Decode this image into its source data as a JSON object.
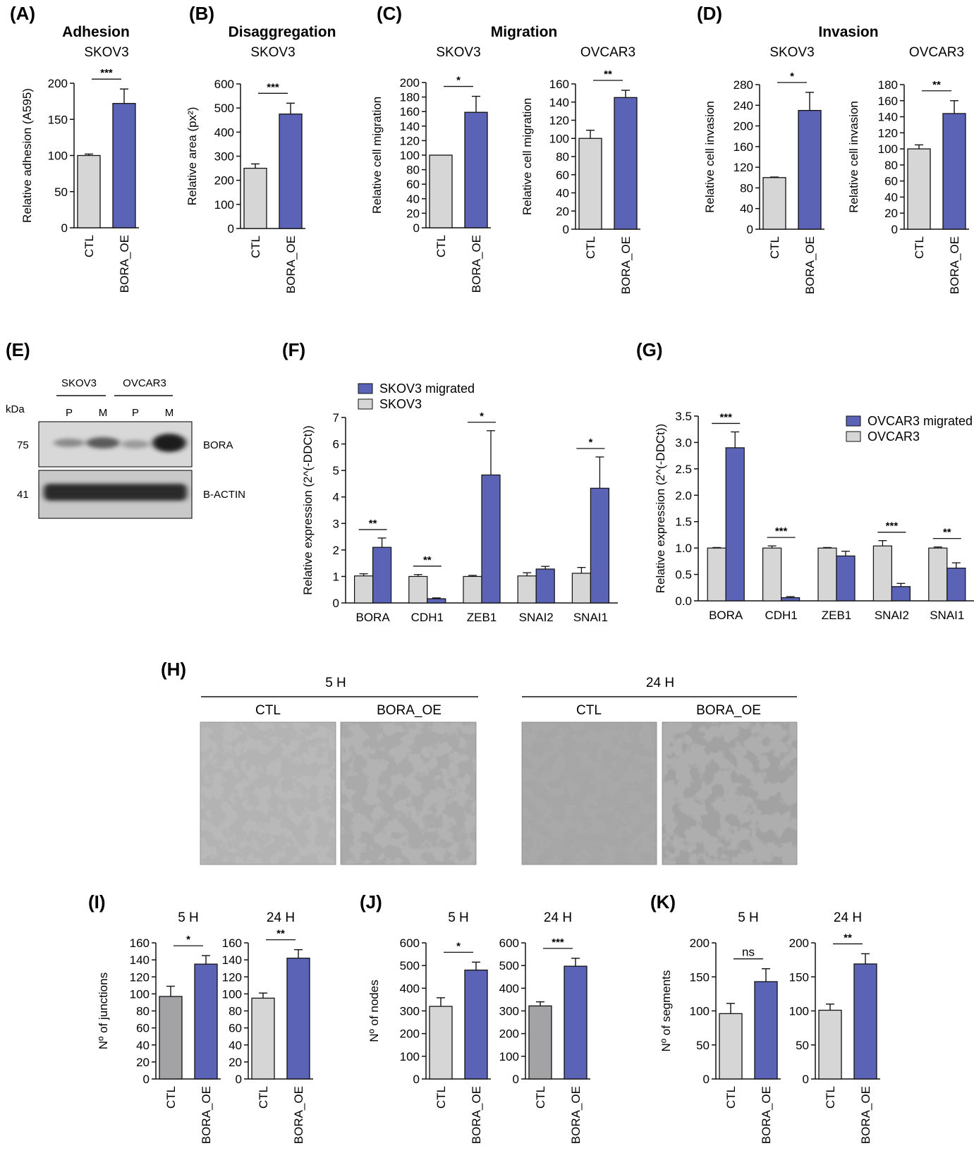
{
  "colors": {
    "ctl": "#d6d6d6",
    "ctl_dark": "#a3a3a6",
    "oe": "#5a63b5",
    "stroke": "#111111"
  },
  "panels": {
    "A": {
      "letter": "(A)",
      "title": "Adhesion"
    },
    "B": {
      "letter": "(B)",
      "title": "Disaggregation"
    },
    "C": {
      "letter": "(C)",
      "title": "Migration"
    },
    "D": {
      "letter": "(D)",
      "title": "Invasion"
    },
    "E": {
      "letter": "(E)"
    },
    "F": {
      "letter": "(F)"
    },
    "G": {
      "letter": "(G)"
    },
    "H": {
      "letter": "(H)"
    },
    "I": {
      "letter": "(I)"
    },
    "J": {
      "letter": "(J)"
    },
    "K": {
      "letter": "(K)"
    }
  },
  "blot": {
    "cell_lines": [
      "SKOV3",
      "OVCAR3"
    ],
    "lanes": [
      "P",
      "M",
      "P",
      "M"
    ],
    "kda_label": "kDa",
    "bands": [
      {
        "kda": "75",
        "name": "BORA"
      },
      {
        "kda": "41",
        "name": "B-ACTIN"
      }
    ]
  },
  "tube_assay": {
    "timepoints": [
      "5 H",
      "24 H"
    ],
    "conditions": [
      "CTL",
      "BORA_OE",
      "CTL",
      "BORA_OE"
    ]
  },
  "chart_data": [
    {
      "id": "A1",
      "type": "bar",
      "title": "SKOV3",
      "ylabel": "Relative adhesion (A595)",
      "categories": [
        "CTL",
        "BORA_OE"
      ],
      "values": [
        100,
        172
      ],
      "errors": [
        2,
        20
      ],
      "ylim": [
        0,
        200
      ],
      "yticks": [
        0,
        50,
        100,
        150,
        200
      ],
      "significance": "***"
    },
    {
      "id": "B1",
      "type": "bar",
      "title": "SKOV3",
      "ylabel": "Relative area (px²)",
      "categories": [
        "CTL",
        "BORA_OE"
      ],
      "values": [
        250,
        475
      ],
      "errors": [
        18,
        45
      ],
      "ylim": [
        0,
        600
      ],
      "yticks": [
        0,
        100,
        200,
        300,
        400,
        500,
        600
      ],
      "significance": "***"
    },
    {
      "id": "C1",
      "type": "bar",
      "title": "SKOV3",
      "ylabel": "Relative cell migration",
      "categories": [
        "CTL",
        "BORA_OE"
      ],
      "values": [
        100,
        159
      ],
      "errors": [
        0,
        22
      ],
      "ylim": [
        0,
        200
      ],
      "yticks": [
        0,
        20,
        40,
        60,
        80,
        100,
        120,
        140,
        160,
        180,
        200
      ],
      "significance": "*"
    },
    {
      "id": "C2",
      "type": "bar",
      "title": "OVCAR3",
      "ylabel": "Relative cell migration",
      "categories": [
        "CTL",
        "BORA_OE"
      ],
      "values": [
        100,
        145
      ],
      "errors": [
        9,
        8
      ],
      "ylim": [
        0,
        160
      ],
      "yticks": [
        0,
        20,
        40,
        60,
        80,
        100,
        120,
        140,
        160
      ],
      "significance": "**"
    },
    {
      "id": "D1",
      "type": "bar",
      "title": "SKOV3",
      "ylabel": "Relative cell invasion",
      "categories": [
        "CTL",
        "BORA_OE"
      ],
      "values": [
        100,
        230
      ],
      "errors": [
        1,
        35
      ],
      "ylim": [
        0,
        280
      ],
      "yticks": [
        0,
        40,
        80,
        120,
        160,
        200,
        240,
        280
      ],
      "significance": "*"
    },
    {
      "id": "D2",
      "type": "bar",
      "title": "OVCAR3",
      "ylabel": "Relative cell invasion",
      "categories": [
        "CTL",
        "BORA_OE"
      ],
      "values": [
        100,
        144
      ],
      "errors": [
        5,
        16
      ],
      "ylim": [
        0,
        180
      ],
      "yticks": [
        0,
        20,
        40,
        60,
        80,
        100,
        120,
        140,
        160,
        180
      ],
      "significance": "**"
    },
    {
      "id": "F",
      "type": "bar",
      "ylabel": "Relative expression (2^(-DDCt))",
      "categories": [
        "BORA",
        "CDH1",
        "ZEB1",
        "SNAI2",
        "SNAI1"
      ],
      "ylim": [
        0,
        7
      ],
      "yticks": [
        0,
        1,
        2,
        3,
        4,
        5,
        6,
        7
      ],
      "series": [
        {
          "name": "SKOV3",
          "values": [
            1.02,
            1.0,
            1.0,
            1.02,
            1.12
          ],
          "errors": [
            0.08,
            0.07,
            0.04,
            0.12,
            0.22
          ]
        },
        {
          "name": "SKOV3 migrated",
          "values": [
            2.1,
            0.16,
            4.83,
            1.28,
            4.33
          ],
          "errors": [
            0.35,
            0.03,
            1.67,
            0.1,
            1.18
          ]
        }
      ],
      "significance": [
        "**",
        "**",
        "*",
        "",
        "*"
      ],
      "legend": [
        "SKOV3 migrated",
        "SKOV3"
      ],
      "legend_position": "top-left"
    },
    {
      "id": "G",
      "type": "bar",
      "ylabel": "Relative expression (2^(-DDCt))",
      "categories": [
        "BORA",
        "CDH1",
        "ZEB1",
        "SNAI2",
        "SNAI1"
      ],
      "ylim": [
        0,
        3.5
      ],
      "yticks": [
        "0.0",
        "0.5",
        "1.0",
        "1.5",
        "2.0",
        "2.5",
        "3.0",
        "3.5"
      ],
      "series": [
        {
          "name": "OVCAR3",
          "values": [
            1.0,
            1.0,
            1.0,
            1.04,
            1.0
          ],
          "errors": [
            0.01,
            0.04,
            0.01,
            0.1,
            0.02
          ]
        },
        {
          "name": "OVCAR3 migrated",
          "values": [
            2.9,
            0.06,
            0.85,
            0.27,
            0.62
          ],
          "errors": [
            0.3,
            0.02,
            0.09,
            0.06,
            0.1
          ]
        }
      ],
      "significance": [
        "***",
        "***",
        "",
        "***",
        "**"
      ],
      "legend": [
        "OVCAR3 migrated",
        "OVCAR3"
      ],
      "legend_position": "top-right"
    },
    {
      "id": "I1",
      "type": "bar",
      "title": "5 H",
      "ylabel": "Nº of junctions",
      "categories": [
        "CTL",
        "BORA_OE"
      ],
      "values": [
        97,
        135
      ],
      "errors": [
        12,
        10
      ],
      "ylim": [
        0,
        160
      ],
      "yticks": [
        0,
        20,
        40,
        60,
        80,
        100,
        120,
        140,
        160
      ],
      "significance": "*",
      "ctl_dark": true
    },
    {
      "id": "I2",
      "type": "bar",
      "title": "24 H",
      "ylabel": "",
      "categories": [
        "CTL",
        "BORA_OE"
      ],
      "values": [
        95,
        142
      ],
      "errors": [
        6,
        10
      ],
      "ylim": [
        0,
        160
      ],
      "yticks": [
        0,
        20,
        40,
        60,
        80,
        100,
        120,
        140,
        160
      ],
      "significance": "**"
    },
    {
      "id": "J1",
      "type": "bar",
      "title": "5 H",
      "ylabel": "Nº of nodes",
      "categories": [
        "CTL",
        "BORA_OE"
      ],
      "values": [
        320,
        480
      ],
      "errors": [
        38,
        35
      ],
      "ylim": [
        0,
        600
      ],
      "yticks": [
        0,
        100,
        200,
        300,
        400,
        500,
        600
      ],
      "significance": "*"
    },
    {
      "id": "J2",
      "type": "bar",
      "title": "24 H",
      "ylabel": "",
      "categories": [
        "CTL",
        "BORA_OE"
      ],
      "values": [
        322,
        497
      ],
      "errors": [
        18,
        35
      ],
      "ylim": [
        0,
        600
      ],
      "yticks": [
        0,
        100,
        200,
        300,
        400,
        500,
        600
      ],
      "significance": "***",
      "ctl_dark": true
    },
    {
      "id": "K1",
      "type": "bar",
      "title": "5 H",
      "ylabel": "Nº of segments",
      "categories": [
        "CTL",
        "BORA_OE"
      ],
      "values": [
        96,
        143
      ],
      "errors": [
        15,
        19
      ],
      "ylim": [
        0,
        200
      ],
      "yticks": [
        0,
        50,
        100,
        150,
        200
      ],
      "significance": "ns"
    },
    {
      "id": "K2",
      "type": "bar",
      "title": "24 H",
      "ylabel": "",
      "categories": [
        "CTL",
        "BORA_OE"
      ],
      "values": [
        101,
        169
      ],
      "errors": [
        9,
        15
      ],
      "ylim": [
        0,
        200
      ],
      "yticks": [
        0,
        50,
        100,
        150,
        200
      ],
      "significance": "**"
    }
  ]
}
